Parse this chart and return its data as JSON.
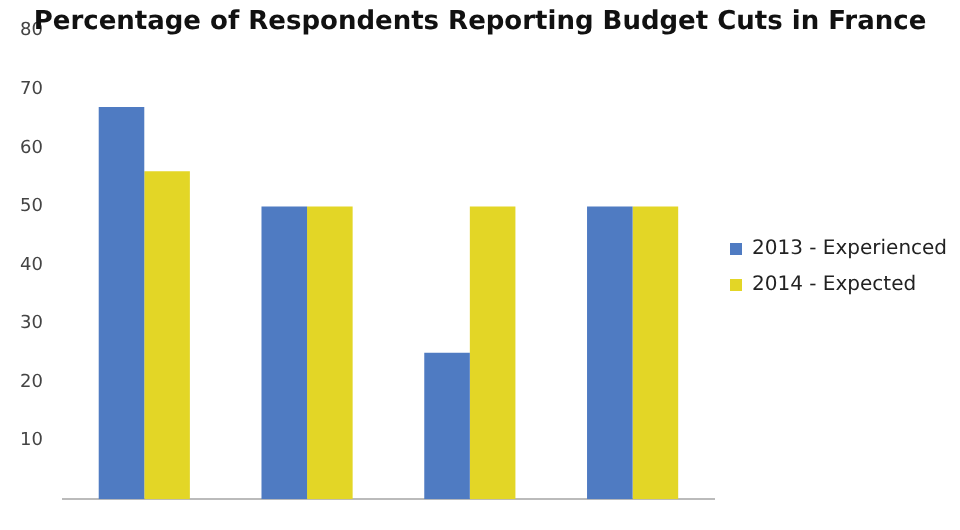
{
  "chart_data": {
    "type": "bar",
    "title": "Percentage of Respondents Reporting Budget Cuts in France",
    "categories": [
      null,
      null,
      null,
      null
    ],
    "series": [
      {
        "name": "2013 - Experienced",
        "color": "#4f7bc2",
        "values": [
          67,
          50,
          25,
          50
        ]
      },
      {
        "name": "2014 - Expected",
        "color": "#e3d626",
        "values": [
          56,
          50,
          50,
          50
        ]
      }
    ],
    "ylim": [
      0,
      80
    ],
    "yticks": [
      10,
      20,
      30,
      40,
      50,
      60,
      70,
      80
    ],
    "grid": false,
    "legend": "right",
    "tick_labels": "y"
  }
}
